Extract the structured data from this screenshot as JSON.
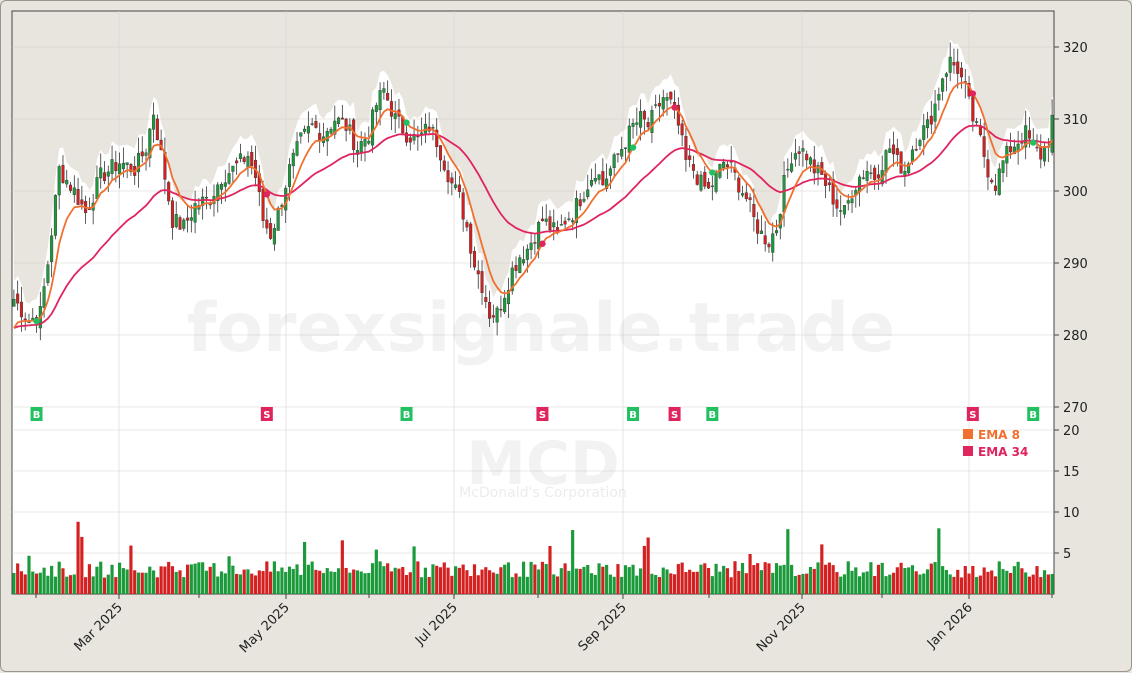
{
  "chart_data": {
    "type": "candlestick",
    "symbol": "MCD",
    "company": "McDonald's Corporation",
    "watermark": "forexsignale.trade",
    "price_axis": {
      "min": 265,
      "max": 325,
      "ticks": [
        270,
        280,
        290,
        300,
        310,
        320
      ]
    },
    "volume_axis": {
      "min": 0,
      "max": 22,
      "ticks": [
        5,
        10,
        15,
        20
      ]
    },
    "x_axis": {
      "ticks": [
        "Mar 2025",
        "May 2025",
        "Jul 2025",
        "Sep 2025",
        "Nov 2025",
        "Jan 2026"
      ]
    },
    "legend": [
      {
        "label": "EMA 8",
        "color": "#f07030"
      },
      {
        "label": "EMA 34",
        "color": "#e0245e"
      }
    ],
    "series_close": [
      [
        0,
        285
      ],
      [
        4,
        282
      ],
      [
        7,
        283
      ],
      [
        9,
        290
      ],
      [
        12,
        303
      ],
      [
        16,
        300
      ],
      [
        19,
        297
      ],
      [
        23,
        302
      ],
      [
        28,
        304
      ],
      [
        32,
        303
      ],
      [
        35,
        306
      ],
      [
        37,
        311
      ],
      [
        39,
        305
      ],
      [
        42,
        296
      ],
      [
        45,
        295
      ],
      [
        48,
        298
      ],
      [
        52,
        299
      ],
      [
        55,
        302
      ],
      [
        58,
        303
      ],
      [
        62,
        305
      ],
      [
        64,
        302
      ],
      [
        66,
        296
      ],
      [
        68,
        294
      ],
      [
        70,
        297
      ],
      [
        73,
        303
      ],
      [
        76,
        307
      ],
      [
        79,
        309
      ],
      [
        82,
        308
      ],
      [
        85,
        310
      ],
      [
        88,
        309
      ],
      [
        91,
        306
      ],
      [
        94,
        308
      ],
      [
        96,
        312
      ],
      [
        98,
        314
      ],
      [
        101,
        310
      ],
      [
        104,
        308
      ],
      [
        107,
        307
      ],
      [
        110,
        309
      ],
      [
        112,
        307
      ],
      [
        114,
        304
      ],
      [
        116,
        301
      ],
      [
        118,
        299
      ],
      [
        120,
        295
      ],
      [
        122,
        290
      ],
      [
        124,
        287
      ],
      [
        126,
        283
      ],
      [
        128,
        283
      ],
      [
        130,
        286
      ],
      [
        132,
        289
      ],
      [
        134,
        291
      ],
      [
        136,
        292
      ],
      [
        138,
        294
      ],
      [
        140,
        296
      ],
      [
        142,
        295
      ],
      [
        144,
        294
      ],
      [
        146,
        296
      ],
      [
        148,
        297
      ],
      [
        150,
        299
      ],
      [
        152,
        301
      ],
      [
        154,
        303
      ],
      [
        156,
        301
      ],
      [
        158,
        303
      ],
      [
        160,
        305
      ],
      [
        162,
        307
      ],
      [
        164,
        309
      ],
      [
        166,
        310
      ],
      [
        168,
        309
      ],
      [
        170,
        311
      ],
      [
        172,
        313
      ],
      [
        174,
        312
      ],
      [
        176,
        309
      ],
      [
        178,
        304
      ],
      [
        180,
        303
      ],
      [
        182,
        301
      ],
      [
        184,
        300
      ],
      [
        186,
        302
      ],
      [
        188,
        304
      ],
      [
        190,
        303
      ],
      [
        192,
        301
      ],
      [
        194,
        299
      ],
      [
        196,
        296
      ],
      [
        198,
        294
      ],
      [
        200,
        293
      ],
      [
        202,
        295
      ],
      [
        204,
        301
      ],
      [
        206,
        305
      ],
      [
        208,
        306
      ],
      [
        210,
        305
      ],
      [
        212,
        303
      ],
      [
        214,
        302
      ],
      [
        216,
        300
      ],
      [
        218,
        298
      ],
      [
        220,
        297
      ],
      [
        222,
        300
      ],
      [
        224,
        302
      ],
      [
        226,
        303
      ],
      [
        228,
        302
      ],
      [
        230,
        304
      ],
      [
        232,
        306
      ],
      [
        234,
        304
      ],
      [
        236,
        303
      ],
      [
        238,
        306
      ],
      [
        240,
        308
      ],
      [
        242,
        309
      ],
      [
        244,
        312
      ],
      [
        246,
        316
      ],
      [
        248,
        318
      ],
      [
        250,
        317
      ],
      [
        252,
        314
      ],
      [
        254,
        310
      ],
      [
        256,
        307
      ],
      [
        258,
        303
      ],
      [
        260,
        301
      ],
      [
        262,
        304
      ],
      [
        264,
        306
      ],
      [
        266,
        307
      ],
      [
        268,
        308
      ],
      [
        270,
        306
      ],
      [
        272,
        305
      ],
      [
        274,
        307
      ],
      [
        275,
        310
      ]
    ],
    "signals": [
      {
        "label": "B",
        "type": "buy",
        "idx": 6
      },
      {
        "label": "S",
        "type": "sell",
        "idx": 67
      },
      {
        "label": "B",
        "type": "buy",
        "idx": 104
      },
      {
        "label": "S",
        "type": "sell",
        "idx": 140
      },
      {
        "label": "B",
        "type": "buy",
        "idx": 164
      },
      {
        "label": "S",
        "type": "sell",
        "idx": 175
      },
      {
        "label": "B",
        "type": "buy",
        "idx": 185
      },
      {
        "label": "S",
        "type": "sell",
        "idx": 254
      },
      {
        "label": "B",
        "type": "buy",
        "idx": 270
      }
    ]
  },
  "colors": {
    "up": "#1a9a3a",
    "down": "#d42020",
    "ema_fast": "#f07030",
    "ema_slow": "#e0245e",
    "buy": "#22c060",
    "sell": "#e0245e"
  }
}
